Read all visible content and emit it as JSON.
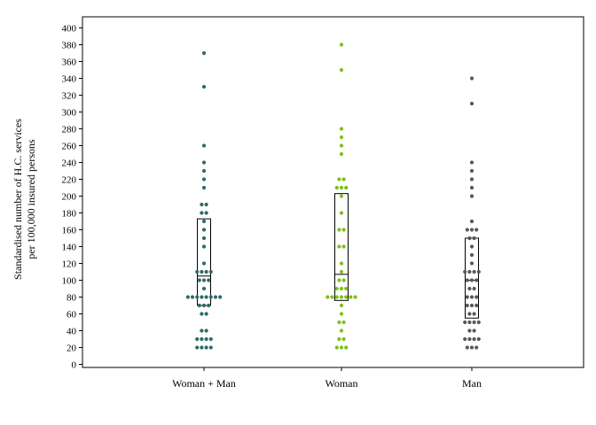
{
  "chart_data": {
    "type": "scatter",
    "subtype": "dot-strip-with-box",
    "title": "",
    "ylabel_lines": [
      "Standardised number of H.C. services",
      "per 100,000 insured persons"
    ],
    "xlabel": "",
    "ylim": [
      0,
      400
    ],
    "yticks": [
      0,
      20,
      40,
      60,
      80,
      100,
      120,
      140,
      160,
      180,
      200,
      220,
      240,
      260,
      280,
      300,
      320,
      340,
      360,
      380,
      400
    ],
    "grid": false,
    "categories": [
      "Woman + Man",
      "Woman",
      "Man"
    ],
    "series": [
      {
        "category": "Woman + Man",
        "color": "#2e6b68",
        "box": {
          "q1": 70,
          "median": 105,
          "q3": 173
        },
        "points": [
          370,
          330,
          260,
          240,
          230,
          220,
          210,
          190,
          190,
          180,
          180,
          170,
          160,
          150,
          140,
          120,
          110,
          110,
          110,
          110,
          100,
          100,
          100,
          90,
          80,
          80,
          80,
          80,
          80,
          80,
          80,
          80,
          70,
          70,
          70,
          60,
          60,
          40,
          40,
          30,
          30,
          30,
          30,
          20,
          20,
          20,
          20
        ]
      },
      {
        "category": "Woman",
        "color": "#7cbf1e",
        "box": {
          "q1": 76,
          "median": 107,
          "q3": 203
        },
        "points": [
          380,
          350,
          280,
          270,
          260,
          250,
          220,
          220,
          210,
          210,
          210,
          200,
          180,
          160,
          160,
          140,
          140,
          120,
          110,
          100,
          100,
          90,
          90,
          90,
          80,
          80,
          80,
          80,
          80,
          80,
          80,
          70,
          60,
          50,
          50,
          40,
          30,
          30,
          20,
          20,
          20
        ]
      },
      {
        "category": "Man",
        "color": "#585858",
        "box": {
          "q1": 55,
          "median": 100,
          "q3": 150
        },
        "points": [
          340,
          310,
          240,
          230,
          220,
          210,
          200,
          170,
          160,
          160,
          160,
          150,
          150,
          140,
          130,
          120,
          110,
          110,
          110,
          110,
          100,
          100,
          100,
          90,
          90,
          80,
          80,
          80,
          70,
          70,
          70,
          60,
          60,
          50,
          50,
          50,
          50,
          40,
          40,
          30,
          30,
          30,
          30,
          20,
          20,
          20
        ]
      }
    ]
  }
}
